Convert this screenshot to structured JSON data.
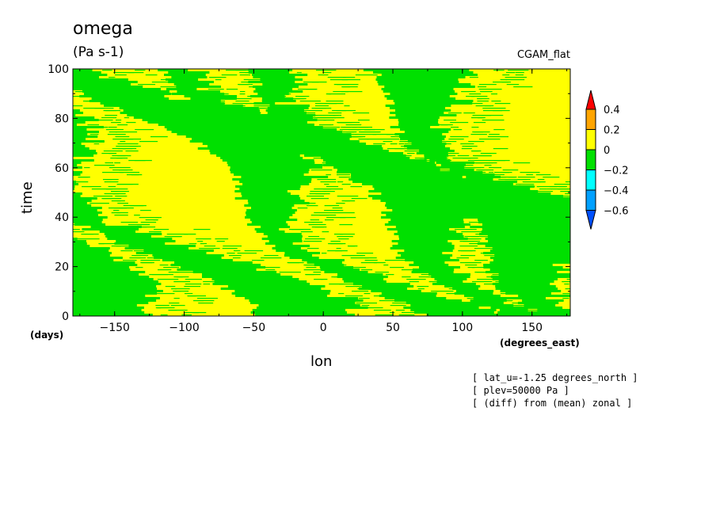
{
  "header": {
    "variable": "omega",
    "units": "(Pa s-1)",
    "model": "CGAM_flat"
  },
  "notes": [
    "[ lat_u=-1.25 degrees_north ]",
    "[ plev=50000 Pa ]",
    "[ (diff) from (mean) zonal ]"
  ],
  "colors": {
    "level_0_to_0.2": "#ffff00",
    "level_-0.2_to_0": "#00e000",
    "level_0.2_to_0.4": "#ffa500",
    "level_above_0.4": "#ff0000",
    "level_-0.4_to_-0.2": "#00ffff",
    "level_-0.6_to_-0.4": "#00a0ff",
    "level_below_-0.6": "#0050ff"
  },
  "chart_data": {
    "type": "heatmap",
    "title": "omega",
    "subtitle": "(Pa s-1)",
    "xlabel": "lon",
    "ylabel": "time",
    "x_unit": "(degrees_east)",
    "y_unit": "(days)",
    "xlim": [
      -180,
      177.5
    ],
    "ylim": [
      0,
      100
    ],
    "x_ticks": [
      -150,
      -100,
      -50,
      0,
      50,
      100,
      150
    ],
    "y_ticks": [
      0,
      20,
      40,
      60,
      80,
      100
    ],
    "x_tick_labels": [
      "−150",
      "−100",
      "−50",
      "0",
      "50",
      "100",
      "150"
    ],
    "y_tick_labels": [
      "0",
      "20",
      "40",
      "60",
      "80",
      "100"
    ],
    "colorbar": {
      "levels": [
        -0.6,
        -0.4,
        -0.2,
        0,
        0.2,
        0.4
      ],
      "labels": [
        "−0.6",
        "−0.4",
        "−0.2",
        "0",
        "0.2",
        "0.4"
      ],
      "colors": [
        "#0050ff",
        "#00a0ff",
        "#00ffff",
        "#00e000",
        "#ffff00",
        "#ffa500",
        "#ff0000"
      ],
      "extend": "both"
    },
    "grid": false,
    "pattern": "eastward-propagating alternating bands of positive (yellow, 0 to 0.2) and negative (green, -0.2 to 0) anomalies, tilted from upper-left to lower-right"
  }
}
